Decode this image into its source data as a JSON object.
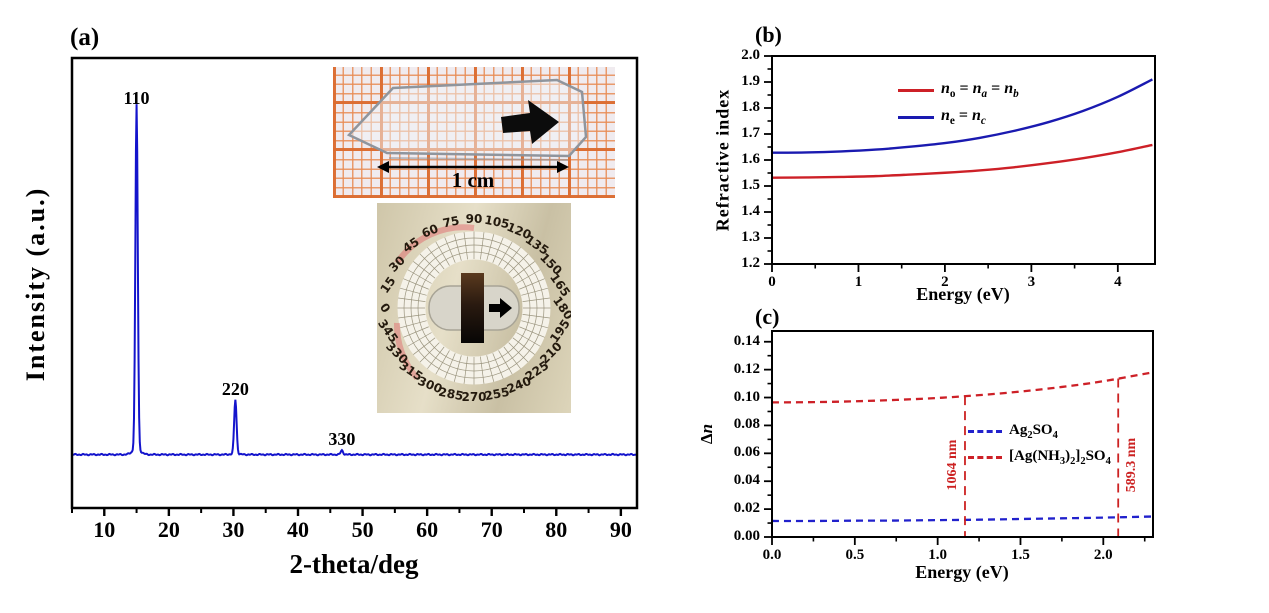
{
  "panels": {
    "a": {
      "label": "(a)",
      "inset_crystal": {
        "scale_label": "1 cm"
      },
      "inset_dial": {
        "angle_labels": [
          "0",
          "15",
          "30",
          "45",
          "60",
          "75",
          "90",
          "105",
          "120",
          "135",
          "150",
          "165",
          "180",
          "195",
          "210",
          "225",
          "240",
          "255",
          "270",
          "285",
          "300",
          "315",
          "330",
          "345"
        ]
      }
    },
    "b": {
      "label": "(b)"
    },
    "c": {
      "label": "(c)"
    }
  },
  "chart_data": [
    {
      "type": "line",
      "panel": "a",
      "title": "XRD pattern",
      "xlabel": "2-theta/deg",
      "ylabel": "Intensity (a.u.)",
      "xlim": [
        5,
        92.5
      ],
      "x_major_ticks": [
        "10",
        "20",
        "30",
        "40",
        "50",
        "60",
        "70",
        "80",
        "90"
      ],
      "x_minor_step": 5,
      "line_color": "#1414cc",
      "peaks": [
        {
          "label": "110",
          "two_theta": 15.0,
          "rel_intensity": 1.0
        },
        {
          "label": "220",
          "two_theta": 30.3,
          "rel_intensity": 0.157
        },
        {
          "label": "330",
          "two_theta": 46.8,
          "rel_intensity": 0.012
        }
      ]
    },
    {
      "type": "line",
      "panel": "b",
      "title": "Refractive index dispersion",
      "xlabel": "Energy (eV)",
      "ylabel": "Refractive index",
      "xlim": [
        0,
        4.43
      ],
      "ylim": [
        1.2,
        2.0
      ],
      "x_major_ticks": [
        "0",
        "1",
        "2",
        "3",
        "4"
      ],
      "x_minor_step": 0.5,
      "y_major_ticks": [
        "1.2",
        "1.3",
        "1.4",
        "1.5",
        "1.6",
        "1.7",
        "1.8",
        "1.9",
        "2.0"
      ],
      "y_minor_step": 0.05,
      "x": [
        0,
        0.4,
        0.8,
        1.2,
        1.6,
        2.0,
        2.4,
        2.8,
        3.2,
        3.6,
        4.0,
        4.4
      ],
      "series": [
        {
          "name": "*n*_{o} = *n*_{*a*} = *n*_{*b*}",
          "color": "#cd2027",
          "style": "solid",
          "y": [
            1.532,
            1.533,
            1.535,
            1.538,
            1.544,
            1.551,
            1.56,
            1.572,
            1.588,
            1.607,
            1.63,
            1.658
          ]
        },
        {
          "name": "*n*_{e} = *n*_{*c*}",
          "color": "#1a1ab0",
          "style": "solid",
          "y": [
            1.628,
            1.629,
            1.633,
            1.64,
            1.651,
            1.665,
            1.685,
            1.712,
            1.746,
            1.789,
            1.843,
            1.91
          ]
        }
      ],
      "legend_position": "top-center"
    },
    {
      "type": "line",
      "panel": "c",
      "title": "Birefringence",
      "xlabel": "Energy (eV)",
      "ylabel": "Δ*n*",
      "xlim": [
        0,
        2.3
      ],
      "ylim": [
        0,
        0.1477
      ],
      "x_major_ticks": [
        "0.0",
        "0.5",
        "1.0",
        "1.5",
        "2.0"
      ],
      "x_minor_step": 0.25,
      "y_major_ticks": [
        "0.00",
        "0.02",
        "0.04",
        "0.06",
        "0.08",
        "0.10",
        "0.12",
        "0.14"
      ],
      "y_minor_step": 0.01,
      "x": [
        0,
        0.25,
        0.5,
        0.75,
        1.0,
        1.25,
        1.5,
        1.75,
        2.0,
        2.3
      ],
      "series": [
        {
          "name": "Ag_{2}SO_{4}",
          "color": "#2121cc",
          "style": "dashed",
          "y": [
            0.0115,
            0.0115,
            0.0117,
            0.0118,
            0.0121,
            0.0124,
            0.0129,
            0.0134,
            0.0139,
            0.0147
          ]
        },
        {
          "name": "[Ag(NH_{3})_{2}]_{2}SO_{4}",
          "color": "#cd2027",
          "style": "dashed",
          "y": [
            0.0965,
            0.0967,
            0.0973,
            0.0983,
            0.0997,
            0.1017,
            0.1043,
            0.1076,
            0.1117,
            0.1181
          ]
        }
      ],
      "annotations": [
        {
          "text": "1064 nm",
          "energy_eV": 1.165,
          "side": "left",
          "color": "#cc2222"
        },
        {
          "text": "589.3 nm",
          "energy_eV": 2.09,
          "side": "right",
          "color": "#cc2222"
        }
      ]
    }
  ]
}
